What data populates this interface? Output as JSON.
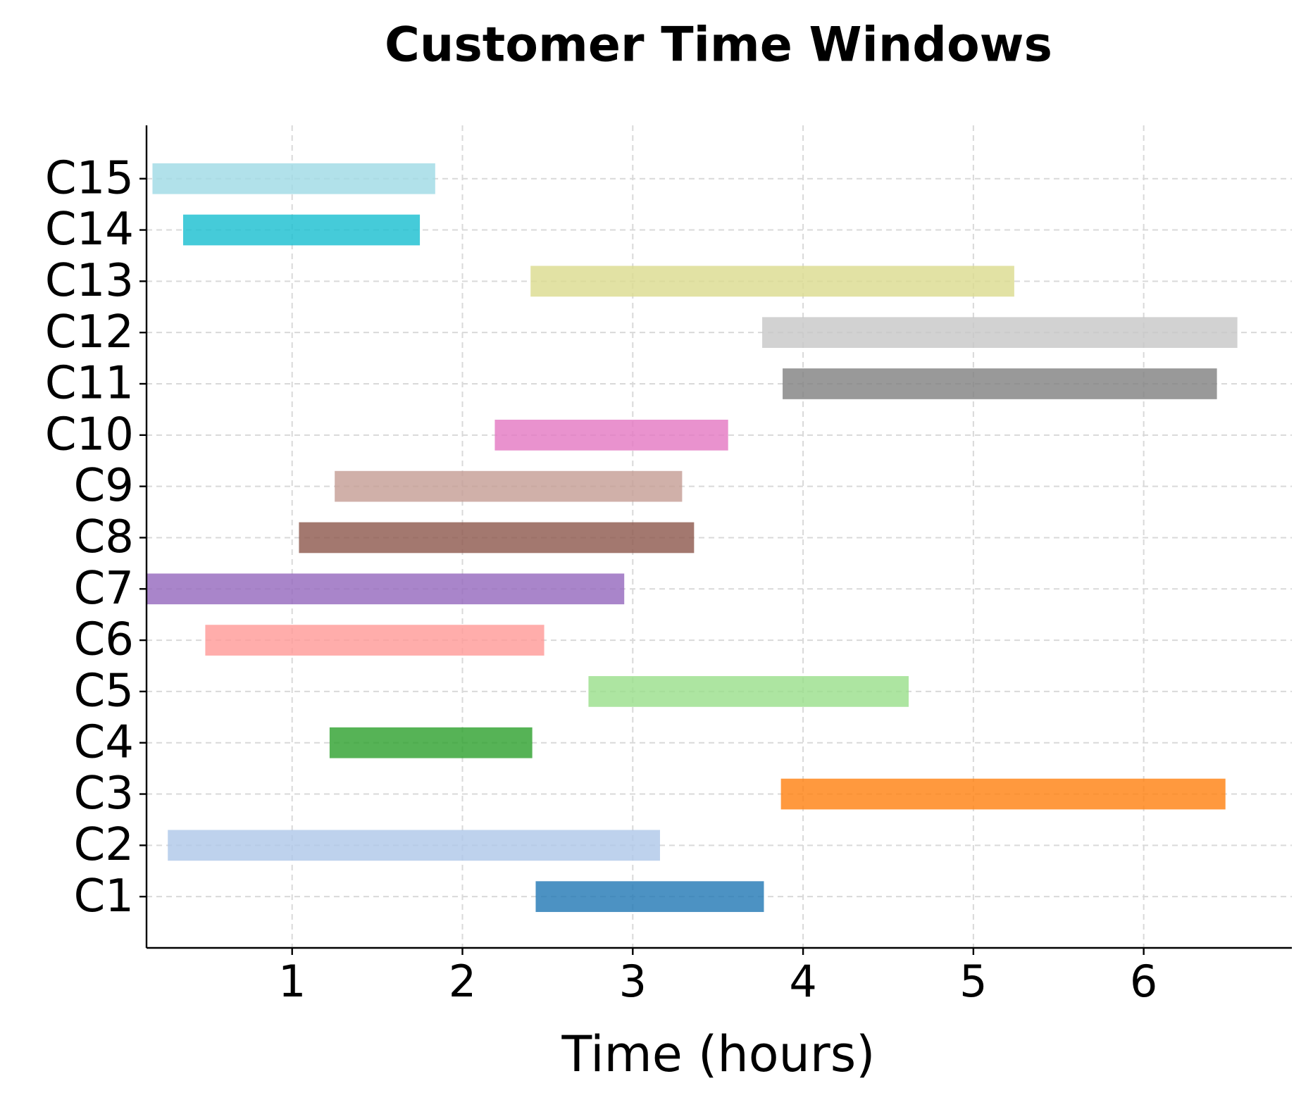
{
  "chart_data": {
    "type": "floating-bar",
    "title": "Customer Time Windows",
    "x_label": "Time (hours)",
    "categories": [
      "C1",
      "C2",
      "C3",
      "C4",
      "C5",
      "C6",
      "C7",
      "C8",
      "C9",
      "C10",
      "C11",
      "C12",
      "C13",
      "C14",
      "C15"
    ],
    "start": [
      2.43,
      0.27,
      3.87,
      1.22,
      2.74,
      0.49,
      0.14,
      1.04,
      1.25,
      2.19,
      3.88,
      3.76,
      2.4,
      0.36,
      0.18
    ],
    "end": [
      3.77,
      3.16,
      6.48,
      2.41,
      4.62,
      2.48,
      2.95,
      3.36,
      3.29,
      3.56,
      6.43,
      6.55,
      5.24,
      1.75,
      1.84
    ],
    "colors": [
      "#1f77b4",
      "#aec7e8",
      "#ff7f0e",
      "#2ca02c",
      "#98df8a",
      "#ff9896",
      "#9467bd",
      "#8c564b",
      "#c49c94",
      "#e377c2",
      "#7f7f7f",
      "#c7c7c7",
      "#dbdb8d",
      "#17becf",
      "#9edae5"
    ],
    "opacity": 0.8,
    "xlim": [
      0.145,
      6.87
    ],
    "xticks": [
      1,
      2,
      3,
      4,
      5,
      6
    ],
    "grid": true
  }
}
